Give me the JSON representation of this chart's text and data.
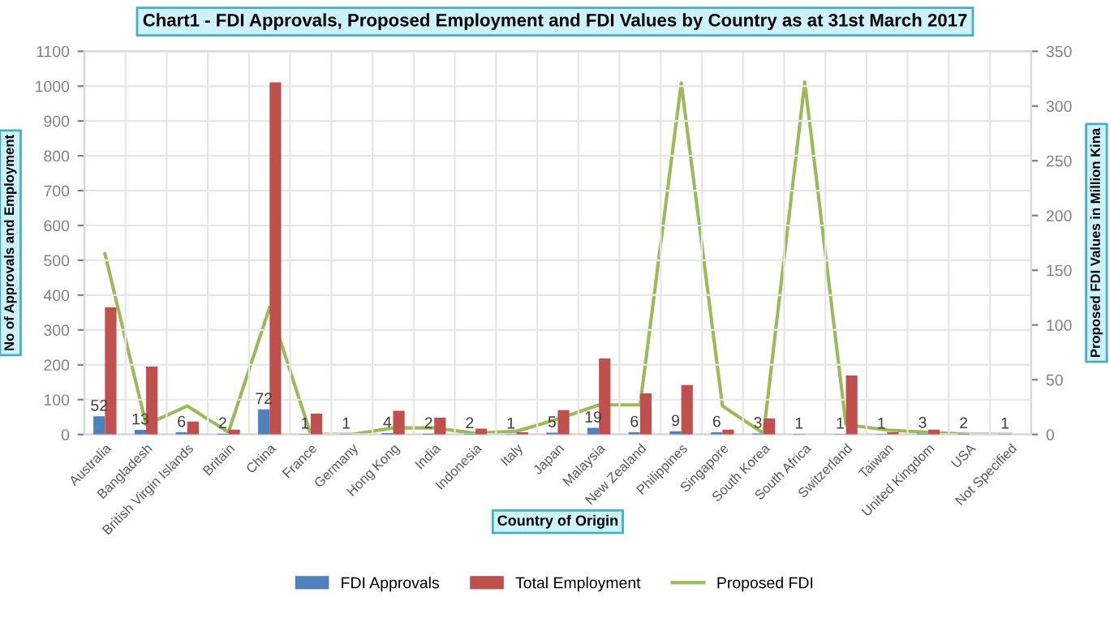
{
  "chart_data": {
    "type": "bar",
    "title": "Chart1 - FDI Approvals, Proposed Employment and FDI Values by Country as at 31st March 2017",
    "xlabel": "Country of Origin",
    "ylabel": "No of Approvals and Employment",
    "y2label": "Proposed FDI Values in Million Kina",
    "categories": [
      "Australia",
      "Bangladesh",
      "British Virgin Islands",
      "Britain",
      "China",
      "France",
      "Germany",
      "Hong Kong",
      "India",
      "Indonesia",
      "Italy",
      "Japan",
      "Malaysia",
      "New Zealand",
      "Philippines",
      "Singapore",
      "South Korea",
      "South Africa",
      "Switzerland",
      "Taiwan",
      "United Kingdom",
      "USA",
      "Not Specified"
    ],
    "series": [
      {
        "name": "FDI Approvals",
        "color": "#4f81bd",
        "values": [
          52,
          13,
          6,
          2,
          72,
          1,
          1,
          4,
          2,
          2,
          1,
          5,
          19,
          6,
          9,
          6,
          3,
          1,
          1,
          1,
          3,
          2,
          1
        ],
        "value_labels": [
          "52",
          "13",
          "6",
          "2",
          "72",
          "1",
          "1",
          "4",
          "2",
          "2",
          "1",
          "5",
          "19",
          "6",
          "9",
          "6",
          "3",
          "1",
          "1",
          "1",
          "3",
          "2",
          "1"
        ]
      },
      {
        "name": "Total Employment",
        "color": "#c0504d",
        "values": [
          365,
          195,
          37,
          14,
          1011,
          60,
          0,
          68,
          48,
          17,
          6,
          70,
          218,
          118,
          142,
          14,
          46,
          0,
          169,
          6,
          14,
          0,
          0
        ]
      },
      {
        "name": "Proposed FDI",
        "type": "line",
        "axis": "y2",
        "color": "#9bbb59",
        "values": [
          165,
          9,
          26,
          2,
          116,
          0,
          0,
          6,
          6,
          1,
          3,
          14,
          27,
          27,
          321,
          26,
          1,
          322,
          9,
          4,
          2,
          0,
          0
        ]
      }
    ],
    "ylim": [
      0,
      1100
    ],
    "yticks": [
      0,
      100,
      200,
      300,
      400,
      500,
      600,
      700,
      800,
      900,
      1000,
      1100
    ],
    "y2lim": [
      0,
      350
    ],
    "y2ticks": [
      0,
      50,
      100,
      150,
      200,
      250,
      300,
      350
    ],
    "grid": true,
    "legend": "bottom"
  }
}
